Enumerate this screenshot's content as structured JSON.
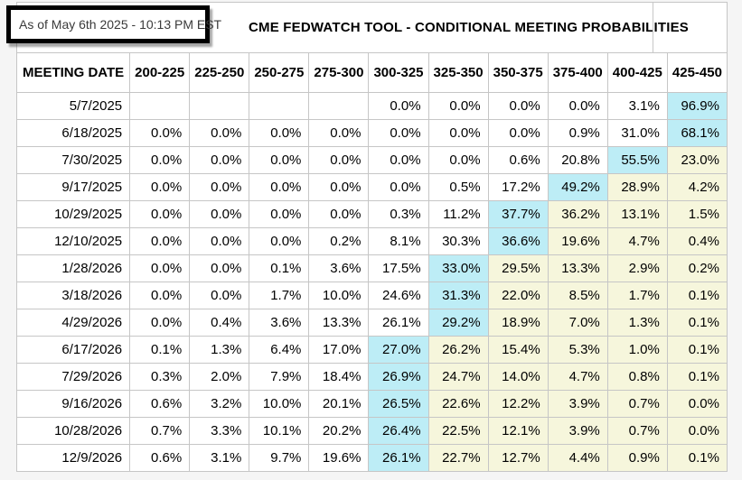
{
  "as_of_label": "As of May 6th 2025 - 10:13 PM EST",
  "title": "CME FEDWATCH TOOL - CONDITIONAL MEETING PROBABILITIES",
  "table": {
    "date_column_header": "MEETING DATE",
    "rate_range_headers": [
      "200-225",
      "225-250",
      "250-275",
      "275-300",
      "300-325",
      "325-350",
      "350-375",
      "375-400",
      "400-425",
      "425-450"
    ],
    "rows": [
      {
        "date": "5/7/2025",
        "values": [
          "",
          "",
          "",
          "",
          "0.0%",
          "0.0%",
          "0.0%",
          "0.0%",
          "3.1%",
          "96.9%"
        ],
        "bg": [
          "",
          "",
          "",
          "",
          "",
          "",
          "",
          "",
          "",
          "c"
        ]
      },
      {
        "date": "6/18/2025",
        "values": [
          "0.0%",
          "0.0%",
          "0.0%",
          "0.0%",
          "0.0%",
          "0.0%",
          "0.0%",
          "0.9%",
          "31.0%",
          "68.1%"
        ],
        "bg": [
          "",
          "",
          "",
          "",
          "",
          "",
          "",
          "",
          "",
          "c"
        ]
      },
      {
        "date": "7/30/2025",
        "values": [
          "0.0%",
          "0.0%",
          "0.0%",
          "0.0%",
          "0.0%",
          "0.0%",
          "0.6%",
          "20.8%",
          "55.5%",
          "23.0%"
        ],
        "bg": [
          "",
          "",
          "",
          "",
          "",
          "",
          "",
          "",
          "c",
          "y"
        ]
      },
      {
        "date": "9/17/2025",
        "values": [
          "0.0%",
          "0.0%",
          "0.0%",
          "0.0%",
          "0.0%",
          "0.5%",
          "17.2%",
          "49.2%",
          "28.9%",
          "4.2%"
        ],
        "bg": [
          "",
          "",
          "",
          "",
          "",
          "",
          "",
          "c",
          "y",
          "y"
        ]
      },
      {
        "date": "10/29/2025",
        "values": [
          "0.0%",
          "0.0%",
          "0.0%",
          "0.0%",
          "0.3%",
          "11.2%",
          "37.7%",
          "36.2%",
          "13.1%",
          "1.5%"
        ],
        "bg": [
          "",
          "",
          "",
          "",
          "",
          "",
          "c",
          "y",
          "y",
          "y"
        ]
      },
      {
        "date": "12/10/2025",
        "values": [
          "0.0%",
          "0.0%",
          "0.0%",
          "0.2%",
          "8.1%",
          "30.3%",
          "36.6%",
          "19.6%",
          "4.7%",
          "0.4%"
        ],
        "bg": [
          "",
          "",
          "",
          "",
          "",
          "",
          "c",
          "y",
          "y",
          "y"
        ]
      },
      {
        "date": "1/28/2026",
        "values": [
          "0.0%",
          "0.0%",
          "0.1%",
          "3.6%",
          "17.5%",
          "33.0%",
          "29.5%",
          "13.3%",
          "2.9%",
          "0.2%"
        ],
        "bg": [
          "",
          "",
          "",
          "",
          "",
          "c",
          "y",
          "y",
          "y",
          "y"
        ]
      },
      {
        "date": "3/18/2026",
        "values": [
          "0.0%",
          "0.0%",
          "1.7%",
          "10.0%",
          "24.6%",
          "31.3%",
          "22.0%",
          "8.5%",
          "1.7%",
          "0.1%"
        ],
        "bg": [
          "",
          "",
          "",
          "",
          "",
          "c",
          "y",
          "y",
          "y",
          "y"
        ]
      },
      {
        "date": "4/29/2026",
        "values": [
          "0.0%",
          "0.4%",
          "3.6%",
          "13.3%",
          "26.1%",
          "29.2%",
          "18.9%",
          "7.0%",
          "1.3%",
          "0.1%"
        ],
        "bg": [
          "",
          "",
          "",
          "",
          "",
          "c",
          "y",
          "y",
          "y",
          "y"
        ]
      },
      {
        "date": "6/17/2026",
        "values": [
          "0.1%",
          "1.3%",
          "6.4%",
          "17.0%",
          "27.0%",
          "26.2%",
          "15.4%",
          "5.3%",
          "1.0%",
          "0.1%"
        ],
        "bg": [
          "",
          "",
          "",
          "",
          "c",
          "y",
          "y",
          "y",
          "y",
          "y"
        ]
      },
      {
        "date": "7/29/2026",
        "values": [
          "0.3%",
          "2.0%",
          "7.9%",
          "18.4%",
          "26.9%",
          "24.7%",
          "14.0%",
          "4.7%",
          "0.8%",
          "0.1%"
        ],
        "bg": [
          "",
          "",
          "",
          "",
          "c",
          "y",
          "y",
          "y",
          "y",
          "y"
        ]
      },
      {
        "date": "9/16/2026",
        "values": [
          "0.6%",
          "3.2%",
          "10.0%",
          "20.1%",
          "26.5%",
          "22.6%",
          "12.2%",
          "3.9%",
          "0.7%",
          "0.0%"
        ],
        "bg": [
          "",
          "",
          "",
          "",
          "c",
          "y",
          "y",
          "y",
          "y",
          "y"
        ]
      },
      {
        "date": "10/28/2026",
        "values": [
          "0.7%",
          "3.3%",
          "10.1%",
          "20.2%",
          "26.4%",
          "22.5%",
          "12.1%",
          "3.9%",
          "0.7%",
          "0.0%"
        ],
        "bg": [
          "",
          "",
          "",
          "",
          "c",
          "y",
          "y",
          "y",
          "y",
          "y"
        ]
      },
      {
        "date": "12/9/2026",
        "values": [
          "0.6%",
          "3.1%",
          "9.7%",
          "19.6%",
          "26.1%",
          "22.7%",
          "12.7%",
          "4.4%",
          "0.9%",
          "0.1%"
        ],
        "bg": [
          "",
          "",
          "",
          "",
          "c",
          "y",
          "y",
          "y",
          "y",
          "y"
        ]
      }
    ]
  },
  "colors": {
    "highlight_cyan": "#BDEDF6",
    "highlight_yellow": "#F6F6DC",
    "border_gray": "#C6C6C6",
    "page_background": "#F5F5F5"
  }
}
